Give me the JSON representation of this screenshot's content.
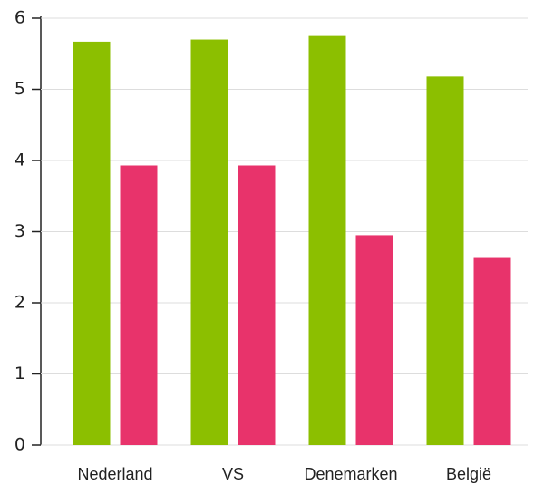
{
  "chart_data": {
    "type": "bar",
    "categories": [
      "Nederland",
      "VS",
      "Denemarken",
      "België"
    ],
    "series": [
      {
        "color": "#8cbf00",
        "values": [
          5.67,
          5.7,
          5.75,
          5.18
        ]
      },
      {
        "color": "#e8336b",
        "values": [
          3.93,
          3.93,
          2.95,
          2.63
        ]
      }
    ],
    "ylim": [
      0,
      6
    ],
    "yticks": [
      0,
      1,
      2,
      3,
      4,
      5,
      6
    ],
    "grid": true
  }
}
